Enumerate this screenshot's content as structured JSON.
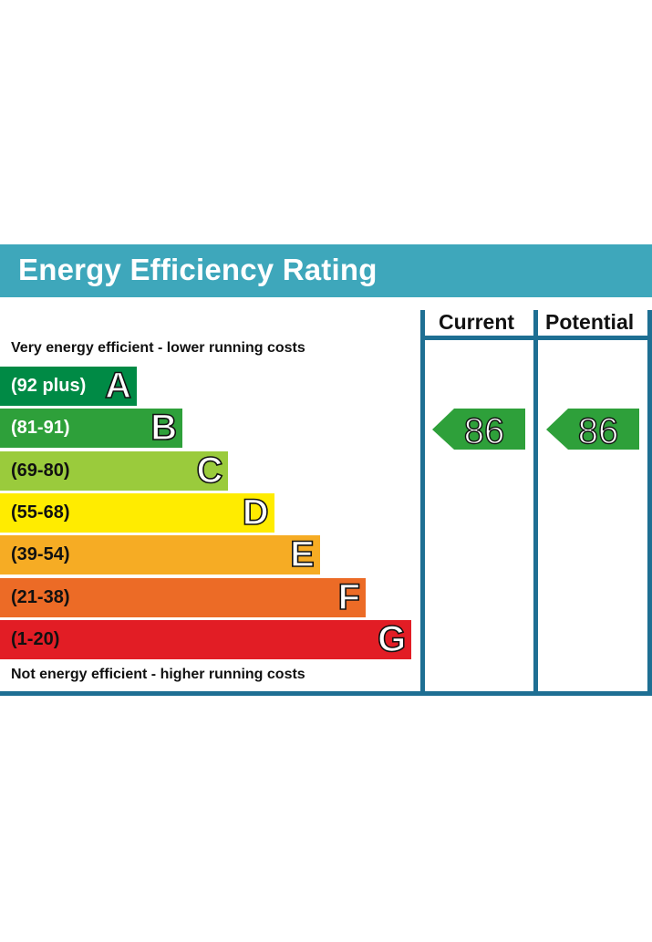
{
  "title": "Energy Efficiency Rating",
  "colors": {
    "header_bg": "#3ea7bb",
    "frame": "#1e6f93"
  },
  "columns": {
    "current": "Current",
    "potential": "Potential"
  },
  "notes": {
    "top": "Very energy efficient - lower running costs",
    "bottom": "Not energy efficient - higher running costs"
  },
  "chart_data": {
    "type": "bar",
    "title": "Energy Efficiency Rating",
    "bands": [
      {
        "letter": "A",
        "range": "(92 plus)",
        "color": "#008a45",
        "text_color": "#ffffff"
      },
      {
        "letter": "B",
        "range": "(81-91)",
        "color": "#2ea03a",
        "text_color": "#ffffff"
      },
      {
        "letter": "C",
        "range": "(69-80)",
        "color": "#9acb3c",
        "text_color": "#111111"
      },
      {
        "letter": "D",
        "range": "(55-68)",
        "color": "#ffec00",
        "text_color": "#111111"
      },
      {
        "letter": "E",
        "range": "(39-54)",
        "color": "#f6ac24",
        "text_color": "#111111"
      },
      {
        "letter": "F",
        "range": "(21-38)",
        "color": "#ec6b26",
        "text_color": "#111111"
      },
      {
        "letter": "G",
        "range": "(1-20)",
        "color": "#e21d25",
        "text_color": "#111111"
      }
    ],
    "ratings": {
      "current": {
        "value": "86",
        "band": "B",
        "color": "#2ea03a"
      },
      "potential": {
        "value": "86",
        "band": "B",
        "color": "#2ea03a"
      }
    }
  }
}
